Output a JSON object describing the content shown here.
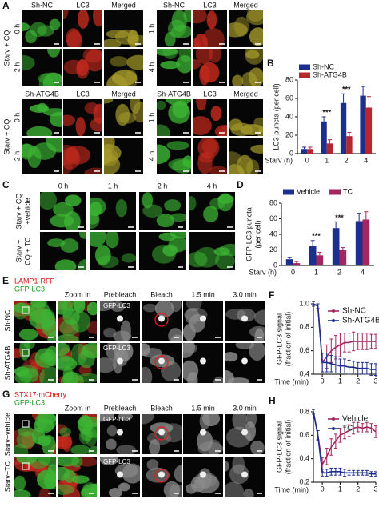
{
  "panels": {
    "labels": [
      "A",
      "B",
      "C",
      "D",
      "E",
      "F",
      "G",
      "H"
    ]
  },
  "panel_a": {
    "columns_top": [
      "Sh-NC",
      "LC3",
      "Merged"
    ],
    "columns_bottom": [
      "Sh-ATG4B",
      "LC3",
      "Merged"
    ],
    "times_left": [
      "0 h",
      "2 h"
    ],
    "times_right": [
      "1 h",
      "4 h"
    ],
    "condition": "Starv + CQ"
  },
  "panel_c": {
    "times": [
      "0 h",
      "1 h",
      "2 h",
      "4 h"
    ],
    "rows": [
      [
        "Starv + CQ",
        "+vehicle"
      ],
      [
        "Starv +",
        "CQ + TC"
      ]
    ]
  },
  "panel_e": {
    "markers": [
      "LAMP1-RFP",
      "GFP-LC3"
    ],
    "columns": [
      "Zoom in",
      "Prebleach",
      "Bleach",
      "1.5 min",
      "3.0 min"
    ],
    "rows": [
      "Sh-NC",
      "Sh-ATG4B"
    ],
    "inset": "GFP-LC3"
  },
  "panel_g": {
    "markers": [
      "STX17-mCherry",
      "GFP-LC3"
    ],
    "columns": [
      "Zoom in",
      "Prebleach",
      "Bleach",
      "1.5 min",
      "3.0 min"
    ],
    "rows": [
      "Starv+vehicle",
      "Starv+TC"
    ],
    "inset": "GFP-LC3"
  },
  "chart_data": [
    {
      "type": "bar",
      "ylabel": [
        "LC3 puncta (per cell)"
      ],
      "xlabel": "Starv (h)",
      "categories": [
        "0",
        "1",
        "2",
        "4"
      ],
      "ylim": [
        0,
        80
      ],
      "yticks": [
        0,
        20,
        40,
        60,
        80
      ],
      "legend": "upper left",
      "series": [
        {
          "name": "Sh-NC",
          "color": "#1c2f8f",
          "values": [
            5,
            35,
            55,
            63
          ],
          "errors": [
            2,
            5,
            10,
            10
          ]
        },
        {
          "name": "Sh-ATG4B",
          "color": "#b5272d",
          "values": [
            5,
            11,
            19,
            50
          ],
          "errors": [
            2,
            4,
            4,
            12
          ]
        }
      ],
      "significance": [
        null,
        "***",
        "***",
        null
      ]
    },
    {
      "type": "bar",
      "ylabel": [
        "GFP-LC3 puncta",
        "(per cell)"
      ],
      "xlabel": "Starv (h)",
      "categories": [
        "0",
        "1",
        "2",
        "4"
      ],
      "ylim": [
        0,
        80
      ],
      "yticks": [
        0,
        20,
        40,
        60,
        80
      ],
      "legend": "top",
      "series": [
        {
          "name": "Vehicle",
          "color": "#1c2f8f",
          "values": [
            8,
            25,
            48,
            57
          ],
          "errors": [
            2,
            7,
            8,
            10
          ]
        },
        {
          "name": "TC",
          "color": "#a3265f",
          "values": [
            3,
            13,
            20,
            59
          ],
          "errors": [
            2,
            4,
            3,
            10
          ]
        }
      ],
      "significance": [
        null,
        "***",
        "***",
        null
      ]
    },
    {
      "type": "line",
      "ylabel": [
        "GFP-LC3 signal",
        "(fraction of initial)"
      ],
      "xlabel": "Time (min)",
      "x": [
        -0.5,
        -0.25,
        0,
        0.25,
        0.5,
        0.75,
        1,
        1.25,
        1.5,
        1.75,
        2,
        2.25,
        2.5,
        2.75,
        3
      ],
      "xlim": [
        -0.5,
        3
      ],
      "xticks": [
        0,
        1,
        2,
        3
      ],
      "ylim": [
        0.4,
        1.0
      ],
      "yticks": [
        0.4,
        0.6,
        0.8,
        {
          "value": 1.0,
          "label": "1.0"
        }
      ],
      "legend": "upper right",
      "series": [
        {
          "name": "Sh-NC",
          "color": "#a3265f",
          "values": [
            1.0,
            0.98,
            0.5,
            0.55,
            0.6,
            0.63,
            0.65,
            0.67,
            0.67,
            0.68,
            0.68,
            0.68,
            0.68,
            0.68,
            0.68
          ],
          "errors": [
            0.02,
            0.02,
            0.08,
            0.1,
            0.1,
            0.1,
            0.1,
            0.08,
            0.08,
            0.08,
            0.07,
            0.07,
            0.07,
            0.06,
            0.06
          ]
        },
        {
          "name": "Sh-ATG4B",
          "color": "#1c2f8f",
          "values": [
            1.0,
            0.98,
            0.5,
            0.5,
            0.49,
            0.48,
            0.47,
            0.47,
            0.46,
            0.46,
            0.45,
            0.45,
            0.45,
            0.44,
            0.44
          ],
          "errors": [
            0.02,
            0.02,
            0.08,
            0.08,
            0.07,
            0.07,
            0.06,
            0.06,
            0.06,
            0.05,
            0.05,
            0.05,
            0.05,
            0.05,
            0.05
          ]
        }
      ]
    },
    {
      "type": "line",
      "ylabel": [
        "GFP-LC3 signal",
        "(fraction of initial)"
      ],
      "xlabel": "Time (min)",
      "x": [
        -0.5,
        -0.25,
        0,
        0.25,
        0.5,
        0.75,
        1,
        1.25,
        1.5,
        1.75,
        2,
        2.25,
        2.5,
        2.75,
        3
      ],
      "xlim": [
        -0.5,
        3
      ],
      "xticks": [
        0,
        1,
        2,
        3
      ],
      "ylim": [
        0.2,
        0.8
      ],
      "yticks": [
        0.2,
        0.4,
        0.6,
        0.8
      ],
      "legend": "upper right",
      "series": [
        {
          "name": "Vehicle",
          "color": "#a3265f",
          "values": [
            0.8,
            0.6,
            0.35,
            0.42,
            0.5,
            0.55,
            0.6,
            0.62,
            0.64,
            0.66,
            0.67,
            0.66,
            0.67,
            0.66,
            0.63
          ],
          "errors": [
            0.02,
            0.04,
            0.06,
            0.07,
            0.07,
            0.06,
            0.06,
            0.05,
            0.05,
            0.05,
            0.04,
            0.04,
            0.04,
            0.04,
            0.05
          ]
        },
        {
          "name": "TC",
          "color": "#1c2f8f",
          "values": [
            0.8,
            0.6,
            0.28,
            0.28,
            0.29,
            0.29,
            0.29,
            0.28,
            0.28,
            0.28,
            0.28,
            0.28,
            0.28,
            0.27,
            0.27
          ],
          "errors": [
            0.02,
            0.04,
            0.03,
            0.03,
            0.03,
            0.03,
            0.03,
            0.03,
            0.02,
            0.02,
            0.02,
            0.02,
            0.02,
            0.02,
            0.02
          ]
        }
      ]
    }
  ]
}
